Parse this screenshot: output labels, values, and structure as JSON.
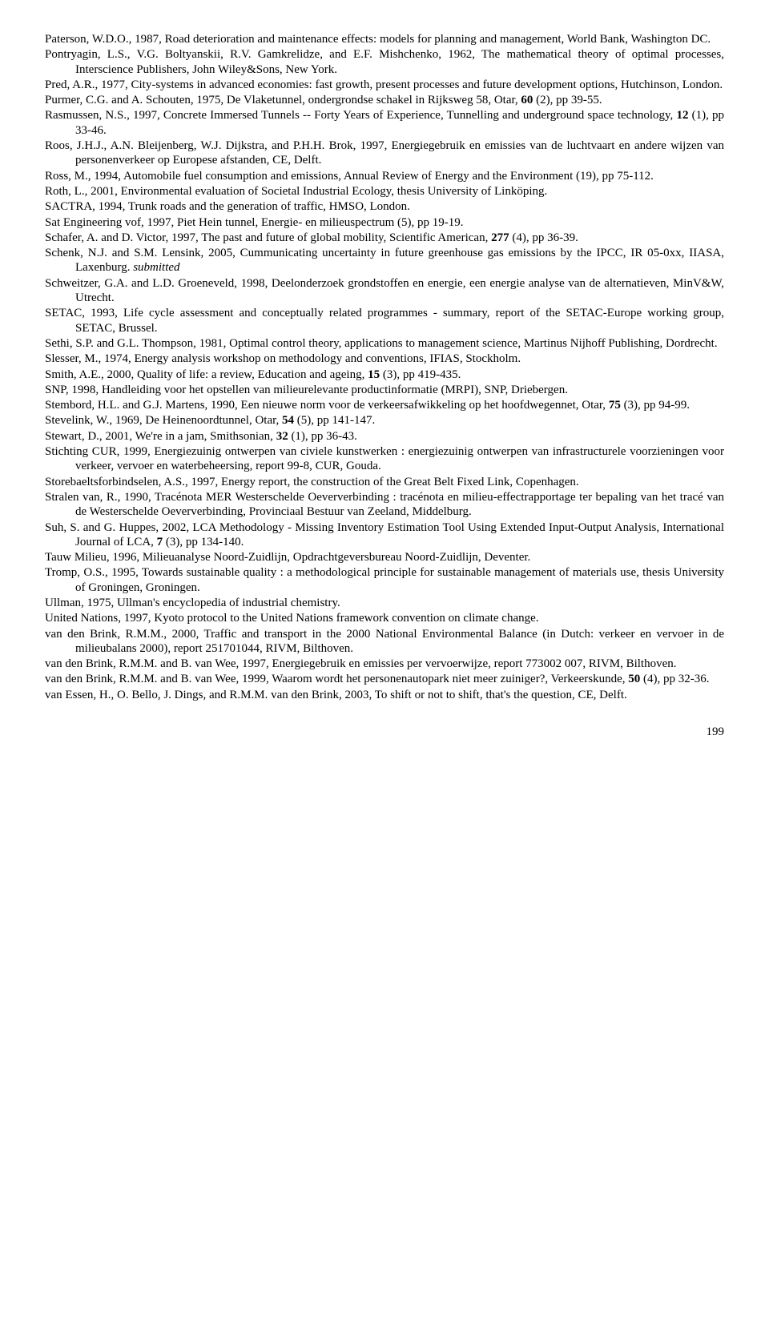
{
  "refs": [
    [
      {
        "t": "Paterson, W.D.O., 1987, Road deterioration and maintenance effects: models for planning and management, World Bank, Washington DC."
      }
    ],
    [
      {
        "t": "Pontryagin, L.S., V.G. Boltyanskii, R.V. Gamkrelidze, and E.F. Mishchenko, 1962, The mathematical theory of optimal processes, Interscience Publishers, John Wiley&Sons, New York."
      }
    ],
    [
      {
        "t": "Pred, A.R., 1977, City-systems in advanced economies: fast growth, present processes and future development options, Hutchinson, London."
      }
    ],
    [
      {
        "t": "Purmer, C.G. and A. Schouten, 1975, De Vlaketunnel, ondergrondse schakel in Rijksweg 58, Otar, "
      },
      {
        "t": "60",
        "b": true
      },
      {
        "t": " (2), pp 39-55."
      }
    ],
    [
      {
        "t": "Rasmussen, N.S., 1997, Concrete Immersed Tunnels -- Forty Years of Experience, Tunnelling and underground space technology, "
      },
      {
        "t": "12",
        "b": true
      },
      {
        "t": " (1), pp 33-46."
      }
    ],
    [
      {
        "t": "Roos, J.H.J., A.N. Bleijenberg, W.J. Dijkstra, and P.H.H. Brok, 1997, Energiegebruik en emissies van de luchtvaart en andere wijzen van personenverkeer op Europese afstanden, CE, Delft."
      }
    ],
    [
      {
        "t": "Ross, M., 1994, Automobile fuel consumption and emissions, Annual Review of Energy and the Environment (19), pp 75-112."
      }
    ],
    [
      {
        "t": "Roth, L., 2001, Environmental evaluation of Societal Industrial Ecology, thesis University of Linköping."
      }
    ],
    [
      {
        "t": "SACTRA, 1994, Trunk roads and the generation of traffic, HMSO, London."
      }
    ],
    [
      {
        "t": "Sat Engineering vof, 1997, Piet Hein tunnel, Energie- en milieuspectrum (5), pp 19-19."
      }
    ],
    [
      {
        "t": "Schafer, A. and D. Victor, 1997, The past and future of global mobility, Scientific American, "
      },
      {
        "t": "277",
        "b": true
      },
      {
        "t": " (4), pp 36-39."
      }
    ],
    [
      {
        "t": "Schenk, N.J. and S.M. Lensink, 2005, Cummunicating uncertainty in future greenhouse gas emissions by the IPCC, IR 05-0xx, IIASA, Laxenburg. "
      },
      {
        "t": "submitted",
        "i": true
      }
    ],
    [
      {
        "t": "Schweitzer, G.A. and L.D. Groeneveld, 1998, Deelonderzoek grondstoffen en energie, een energie analyse van de alternatieven, MinV&W, Utrecht."
      }
    ],
    [
      {
        "t": "SETAC, 1993, Life cycle assessment and conceptually related programmes - summary, report of the SETAC-Europe working group, SETAC, Brussel."
      }
    ],
    [
      {
        "t": "Sethi, S.P. and G.L. Thompson, 1981, Optimal control theory, applications to management science, Martinus Nijhoff Publishing, Dordrecht."
      }
    ],
    [
      {
        "t": "Slesser, M., 1974, Energy analysis workshop on methodology and conventions, IFIAS, Stockholm."
      }
    ],
    [
      {
        "t": "Smith, A.E., 2000, Quality of life: a review, Education and ageing, "
      },
      {
        "t": "15",
        "b": true
      },
      {
        "t": " (3), pp 419-435."
      }
    ],
    [
      {
        "t": "SNP, 1998, Handleiding voor het opstellen van milieurelevante productinformatie (MRPI), SNP, Driebergen."
      }
    ],
    [
      {
        "t": "Stembord, H.L. and G.J. Martens, 1990, Een nieuwe norm voor de verkeersafwikkeling op het hoofdwegennet, Otar, "
      },
      {
        "t": "75",
        "b": true
      },
      {
        "t": " (3), pp 94-99."
      }
    ],
    [
      {
        "t": "Stevelink, W., 1969, De Heinenoordtunnel, Otar, "
      },
      {
        "t": "54",
        "b": true
      },
      {
        "t": " (5), pp 141-147."
      }
    ],
    [
      {
        "t": "Stewart, D., 2001, We're in a jam, Smithsonian, "
      },
      {
        "t": "32",
        "b": true
      },
      {
        "t": " (1), pp 36-43."
      }
    ],
    [
      {
        "t": "Stichting CUR, 1999, Energiezuinig ontwerpen van civiele kunstwerken : energiezuinig ontwerpen van infrastructurele voorzieningen voor verkeer, vervoer en waterbeheersing, report 99-8, CUR, Gouda."
      }
    ],
    [
      {
        "t": "Storebaeltsforbindselen, A.S., 1997, Energy report, the construction of the Great Belt Fixed Link, Copenhagen."
      }
    ],
    [
      {
        "t": "Stralen van, R., 1990, Tracénota MER Westerschelde Oeververbinding : tracénota en milieu-effectrapportage ter bepaling van het tracé van de Westerschelde Oeververbinding, Provinciaal Bestuur van Zeeland, Middelburg."
      }
    ],
    [
      {
        "t": "Suh, S. and G. Huppes, 2002, LCA Methodology - Missing Inventory Estimation Tool Using Extended Input-Output Analysis, International Journal of LCA, "
      },
      {
        "t": "7",
        "b": true
      },
      {
        "t": " (3), pp 134-140."
      }
    ],
    [
      {
        "t": "Tauw Milieu, 1996, Milieuanalyse Noord-Zuidlijn, Opdrachtgeversbureau Noord-Zuidlijn, Deventer."
      }
    ],
    [
      {
        "t": "Tromp, O.S., 1995, Towards sustainable quality : a methodological principle for sustainable management of materials use, thesis University of Groningen, Groningen."
      }
    ],
    [
      {
        "t": "Ullman, 1975, Ullman's encyclopedia of industrial chemistry."
      }
    ],
    [
      {
        "t": "United Nations, 1997, Kyoto protocol to the United Nations framework convention on climate change."
      }
    ],
    [
      {
        "t": "van den Brink, R.M.M., 2000, Traffic and transport in the 2000 National Environmental Balance (in Dutch: verkeer en vervoer in de milieubalans 2000), report 251701044, RIVM, Bilthoven."
      }
    ],
    [
      {
        "t": "van den Brink, R.M.M. and B. van Wee, 1997, Energiegebruik en emissies per vervoerwijze, report 773002 007, RIVM, Bilthoven."
      }
    ],
    [
      {
        "t": "van den Brink, R.M.M. and B. van Wee, 1999, Waarom wordt het personenautopark niet meer zuiniger?, Verkeerskunde, "
      },
      {
        "t": "50",
        "b": true
      },
      {
        "t": " (4), pp 32-36."
      }
    ],
    [
      {
        "t": "van Essen, H., O. Bello, J. Dings, and R.M.M. van den Brink, 2003, To shift or not to shift, that's the question, CE, Delft."
      }
    ]
  ],
  "page_number": "199"
}
